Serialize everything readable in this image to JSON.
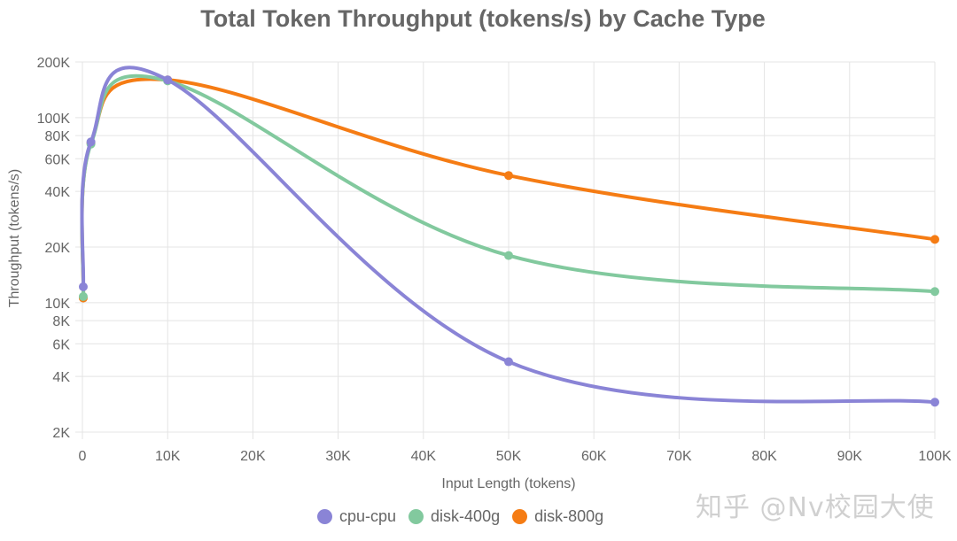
{
  "chart_data": {
    "type": "line",
    "title": "Total Token Throughput (tokens/s) by Cache Type",
    "xlabel": "Input Length (tokens)",
    "ylabel": "Throughput (tokens/s)",
    "x_scale": "linear",
    "y_scale": "log",
    "xlim": [
      0,
      100000
    ],
    "ylim": [
      2000,
      200000
    ],
    "x_ticks": [
      "0",
      "10K",
      "20K",
      "30K",
      "40K",
      "50K",
      "60K",
      "70K",
      "80K",
      "90K",
      "100K"
    ],
    "y_ticks": [
      "2K",
      "4K",
      "6K",
      "8K",
      "10K",
      "20K",
      "40K",
      "60K",
      "80K",
      "100K",
      "200K"
    ],
    "grid": true,
    "legend_position": "bottom",
    "x": [
      100,
      1000,
      10000,
      50000,
      100000
    ],
    "series": [
      {
        "name": "cpu-cpu",
        "color": "#8a84d6",
        "values": [
          12200,
          74000,
          160000,
          4800,
          2900
        ]
      },
      {
        "name": "disk-400g",
        "color": "#82c99e",
        "values": [
          10800,
          72000,
          158000,
          18000,
          11500
        ]
      },
      {
        "name": "disk-800g",
        "color": "#f57c14",
        "values": [
          10600,
          73000,
          160000,
          48700,
          22000
        ]
      }
    ]
  },
  "legend": {
    "items": [
      {
        "label": "cpu-cpu",
        "color": "#8a84d6"
      },
      {
        "label": "disk-400g",
        "color": "#82c99e"
      },
      {
        "label": "disk-800g",
        "color": "#f57c14"
      }
    ]
  },
  "watermark": "知乎 @Nv校园大使"
}
